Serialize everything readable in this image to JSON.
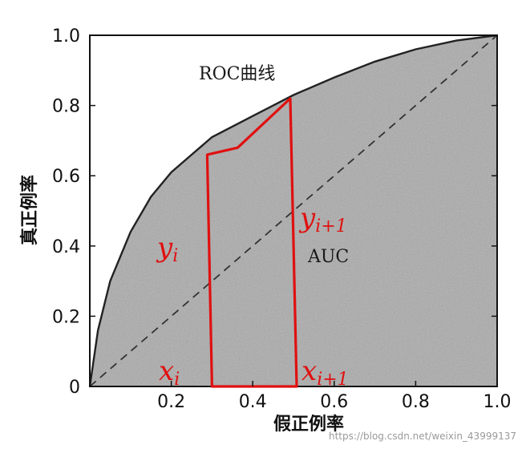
{
  "chart_data": {
    "type": "area",
    "title": "",
    "xlabel": "假正例率",
    "ylabel": "真正例率",
    "xlim": [
      0,
      1
    ],
    "ylim": [
      0,
      1
    ],
    "x_ticks": [
      "0.2",
      "0.4",
      "0.6",
      "0.8",
      "1.0"
    ],
    "y_ticks": [
      "0",
      "0.2",
      "0.4",
      "0.6",
      "0.8",
      "1.0"
    ],
    "series": [
      {
        "name": "ROC曲线",
        "x": [
          0.0,
          0.02,
          0.05,
          0.1,
          0.15,
          0.2,
          0.25,
          0.3,
          0.4,
          0.5,
          0.6,
          0.7,
          0.8,
          0.9,
          1.0
        ],
        "y": [
          0.0,
          0.16,
          0.3,
          0.44,
          0.54,
          0.61,
          0.66,
          0.71,
          0.77,
          0.83,
          0.88,
          0.925,
          0.96,
          0.985,
          1.0
        ]
      },
      {
        "type": "line",
        "style": "dashed",
        "x": [
          0,
          1
        ],
        "y": [
          0,
          1
        ]
      }
    ],
    "highlight_region": {
      "color": "#e01010",
      "x": [
        0.3,
        0.5
      ],
      "y_top": [
        0.66,
        0.82
      ]
    },
    "annotations": {
      "roc_label": "ROC曲线",
      "auc_label": "AUC",
      "y_i": "y",
      "y_i_sub": "i",
      "y_i1": "y",
      "y_i1_sub": "i+1",
      "x_i": "x",
      "x_i_sub": "i",
      "x_i1": "x",
      "x_i1_sub": "i+1"
    },
    "grid": false
  },
  "watermark": "https://blog.csdn.net/weixin_43999137"
}
